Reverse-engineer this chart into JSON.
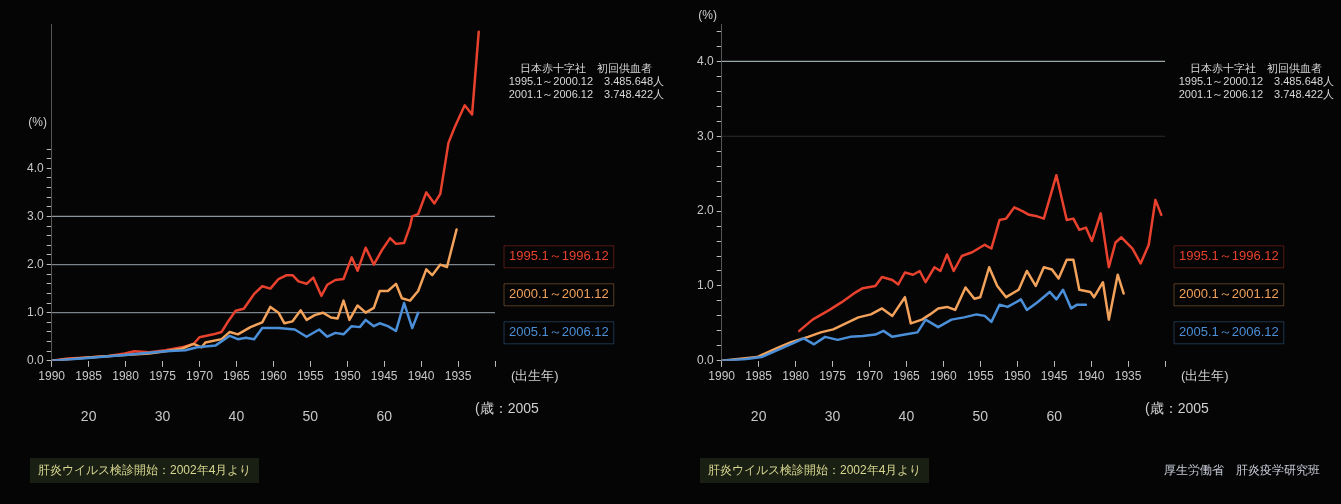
{
  "chart_data": [
    {
      "type": "line",
      "xlabel": "(出生年)",
      "x2label": "(歳：2005",
      "ylabel": "(%)",
      "xlim": [
        1990,
        1930
      ],
      "xticks": [
        1990,
        1985,
        1980,
        1975,
        1970,
        1965,
        1960,
        1955,
        1950,
        1945,
        1940,
        1935,
        {
          "value": 1930,
          "label": null
        }
      ],
      "x2lim": [
        15,
        75
      ],
      "x2ticks": [
        20,
        30,
        40,
        50,
        60
      ],
      "ylim": [
        0,
        7
      ],
      "yticks": [
        {
          "value": 0,
          "label": "0.0"
        },
        {
          "value": 0.2,
          "label": null
        },
        {
          "value": 0.4,
          "label": null
        },
        {
          "value": 0.6,
          "label": null
        },
        {
          "value": 0.8,
          "label": null
        },
        {
          "value": 1,
          "label": "1.0"
        },
        {
          "value": 1.2,
          "label": null
        },
        {
          "value": 1.4,
          "label": null
        },
        {
          "value": 1.6,
          "label": null
        },
        {
          "value": 1.8,
          "label": null
        },
        {
          "value": 2,
          "label": "2.0"
        },
        {
          "value": 2.2,
          "label": null
        },
        {
          "value": 2.4,
          "label": null
        },
        {
          "value": 2.6,
          "label": null
        },
        {
          "value": 2.8,
          "label": null
        },
        {
          "value": 3,
          "label": "3.0"
        },
        {
          "value": 3.2,
          "label": null
        },
        {
          "value": 3.4,
          "label": null
        },
        {
          "value": 3.6,
          "label": null
        },
        {
          "value": 3.8,
          "label": null
        },
        {
          "value": 4,
          "label": "4.0"
        },
        {
          "value": 4.2,
          "label": null
        },
        {
          "value": 4.4,
          "label": null
        }
      ],
      "grid": false,
      "legend": "right",
      "marker": "none",
      "line_style": "solid",
      "ref_lines": [
        {
          "axis": "y",
          "value": 1,
          "color": "#7c848c"
        },
        {
          "axis": "y",
          "value": 2,
          "color": "#7c848c"
        },
        {
          "axis": "y",
          "value": 3,
          "color": "#8c949c"
        }
      ],
      "annotations": [
        "日本赤十字社　初回供血者",
        "1995.1～2000.12　3.485.648人",
        "2001.1～2006.12　3.748.422人",
        "肝炎ウイルス検診開始：2002年4月より"
      ],
      "series": [
        {
          "name": "1995.1～1996.12",
          "color": "#e8412e",
          "x": [
            1990,
            1987.8,
            1985.1,
            1982.3,
            1980.1,
            1978.8,
            1976.8,
            1974.6,
            1972.4,
            1970.8,
            1970,
            1968.1,
            1967,
            1966.2,
            1965.1,
            1964,
            1962.6,
            1961.5,
            1960.4,
            1959.3,
            1958.2,
            1957.4,
            1956.6,
            1955.5,
            1954.6,
            1953.5,
            1952.7,
            1951.6,
            1950.5,
            1949.4,
            1948.6,
            1947.5,
            1946.4,
            1945.3,
            1944.2,
            1943.4,
            1942.3,
            1941.5,
            1941.2,
            1940.4,
            1939.3,
            1938.2,
            1937.4,
            1936.3,
            1935.5,
            1934.1,
            1933.1,
            1932.2
          ],
          "values": [
            0,
            0.05,
            0.07,
            0.1,
            0.15,
            0.2,
            0.18,
            0.22,
            0.28,
            0.35,
            0.49,
            0.55,
            0.6,
            0.8,
            1.04,
            1.08,
            1.39,
            1.55,
            1.5,
            1.7,
            1.78,
            1.78,
            1.65,
            1.6,
            1.73,
            1.35,
            1.58,
            1.68,
            1.7,
            2.15,
            1.87,
            2.35,
            2,
            2.3,
            2.55,
            2.43,
            2.45,
            2.8,
            3,
            3.05,
            3.5,
            3.27,
            3.47,
            4.53,
            4.84,
            5.31,
            5.12,
            6.84
          ]
        },
        {
          "name": "2000.1～2001.12",
          "color": "#f2a25a",
          "x": [
            1990,
            1985.1,
            1980.1,
            1976.8,
            1974.6,
            1972.4,
            1970.8,
            1969.7,
            1969.2,
            1967,
            1965.9,
            1964.8,
            1963.1,
            1961.5,
            1960.4,
            1959.3,
            1958.5,
            1957.4,
            1956.3,
            1955.5,
            1954.4,
            1953.3,
            1952.2,
            1951.3,
            1950.5,
            1949.7,
            1948.6,
            1947.5,
            1946.4,
            1945.6,
            1944.5,
            1943.4,
            1942.6,
            1941.5,
            1940.4,
            1939.3,
            1938.5,
            1937.4,
            1936.5,
            1935.2
          ],
          "values": [
            0,
            0.07,
            0.12,
            0.15,
            0.2,
            0.25,
            0.35,
            0.28,
            0.38,
            0.45,
            0.6,
            0.55,
            0.7,
            0.8,
            1.12,
            1,
            0.78,
            0.82,
            1.05,
            0.85,
            0.95,
            1,
            0.9,
            0.88,
            1.25,
            0.85,
            1.15,
            1,
            1.1,
            1.45,
            1.45,
            1.6,
            1.3,
            1.25,
            1.45,
            1.9,
            1.78,
            2,
            1.95,
            2.73
          ]
        },
        {
          "name": "2005.1～2006.12",
          "color": "#4a8fd8",
          "x": [
            1990,
            1985.1,
            1980.1,
            1974.6,
            1971.9,
            1970.3,
            1967.8,
            1965.9,
            1964.8,
            1963.7,
            1962.6,
            1961.5,
            1959.3,
            1957.1,
            1955.5,
            1953.8,
            1952.7,
            1951.6,
            1950.5,
            1949.4,
            1948.3,
            1947.5,
            1946.4,
            1945.6,
            1944.5,
            1943.4,
            1942.3,
            1941.2,
            1940.4
          ],
          "values": [
            0,
            0.06,
            0.12,
            0.2,
            0.22,
            0.28,
            0.32,
            0.52,
            0.45,
            0.48,
            0.45,
            0.68,
            0.68,
            0.65,
            0.5,
            0.65,
            0.5,
            0.58,
            0.55,
            0.72,
            0.7,
            0.85,
            0.72,
            0.78,
            0.72,
            0.62,
            1.2,
            0.68,
            1
          ]
        }
      ]
    },
    {
      "type": "line",
      "xlabel": "(出生年)",
      "x2label": "(歳：2005",
      "ylabel": "(%)",
      "xlim": [
        1990,
        1930
      ],
      "xticks": [
        1990,
        1985,
        1980,
        1975,
        1970,
        1965,
        1960,
        1955,
        1950,
        1945,
        1940,
        1935,
        {
          "value": 1930,
          "label": null
        }
      ],
      "x2lim": [
        15,
        75
      ],
      "x2ticks": [
        20,
        30,
        40,
        50,
        60
      ],
      "ylim": [
        0,
        4.5
      ],
      "yticks": [
        {
          "value": 0,
          "label": "0.0"
        },
        {
          "value": 0.2,
          "label": null
        },
        {
          "value": 0.4,
          "label": null
        },
        {
          "value": 0.6,
          "label": null
        },
        {
          "value": 0.8,
          "label": null
        },
        {
          "value": 1,
          "label": "1.0"
        },
        {
          "value": 1.2,
          "label": null
        },
        {
          "value": 1.4,
          "label": null
        },
        {
          "value": 1.6,
          "label": null
        },
        {
          "value": 1.8,
          "label": null
        },
        {
          "value": 2,
          "label": "2.0"
        },
        {
          "value": 2.2,
          "label": null
        },
        {
          "value": 2.4,
          "label": null
        },
        {
          "value": 2.6,
          "label": null
        },
        {
          "value": 2.8,
          "label": null
        },
        {
          "value": 3,
          "label": "3.0"
        },
        {
          "value": 3.2,
          "label": null
        },
        {
          "value": 3.4,
          "label": null
        },
        {
          "value": 3.6,
          "label": null
        },
        {
          "value": 3.8,
          "label": null
        },
        {
          "value": 4,
          "label": "4.0"
        },
        {
          "value": 4.2,
          "label": null
        },
        {
          "value": 4.4,
          "label": null
        }
      ],
      "grid": false,
      "legend": "right",
      "marker": "none",
      "line_style": "solid",
      "ref_lines": [
        {
          "axis": "y",
          "value": 3,
          "color": "#2a2e32"
        },
        {
          "axis": "y",
          "value": 4,
          "color": "#9aa6aa"
        }
      ],
      "annotations": [
        "日本赤十字社　初回供血者",
        "1995.1～2000.12　3.485.648人",
        "2001.1～2006.12　3.748.422人",
        "肝炎ウイルス検診開始：2002年4月より",
        "厚生労働省　肝炎疫学研究班"
      ],
      "series": [
        {
          "name": "1995.1～1996.12",
          "color": "#e8412e",
          "x": [
            1979.5,
            1977.7,
            1975.4,
            1973.8,
            1972.1,
            1970.9,
            1969.2,
            1968.3,
            1966.9,
            1966.1,
            1965.2,
            1964.1,
            1963.2,
            1962.4,
            1961.2,
            1960.4,
            1959.5,
            1958.6,
            1957.5,
            1956.1,
            1954.4,
            1953.5,
            1952.4,
            1951.5,
            1950.4,
            1949.3,
            1948.4,
            1947.3,
            1946.4,
            1944.7,
            1943.3,
            1942.4,
            1941.6,
            1940.7,
            1939.9,
            1938.7,
            1937.6,
            1936.7,
            1935.9,
            1934.4,
            1933.3,
            1932.2,
            1931.3,
            1930.5
          ],
          "values": [
            0.4,
            0.55,
            0.68,
            0.78,
            0.9,
            0.97,
            1,
            1.12,
            1.08,
            1.02,
            1.18,
            1.15,
            1.2,
            1.05,
            1.25,
            1.2,
            1.42,
            1.2,
            1.4,
            1.45,
            1.55,
            1.5,
            1.88,
            1.9,
            2.05,
            2,
            1.95,
            1.93,
            1.9,
            2.48,
            1.88,
            1.9,
            1.75,
            1.78,
            1.6,
            1.97,
            1.25,
            1.58,
            1.65,
            1.5,
            1.3,
            1.55,
            2.15,
            1.95
          ]
        },
        {
          "name": "2000.1～2001.12",
          "color": "#f2a25a",
          "x": [
            1990,
            1985.2,
            1982.3,
            1980.6,
            1978.3,
            1976.6,
            1974.9,
            1973.2,
            1971.5,
            1969.8,
            1968.3,
            1966.9,
            1965.2,
            1964.4,
            1962.9,
            1961.8,
            1960.7,
            1959.5,
            1958.4,
            1957,
            1955.8,
            1955,
            1953.8,
            1952.7,
            1951.5,
            1949.8,
            1948.7,
            1947.5,
            1946.4,
            1945.3,
            1944.4,
            1943.3,
            1942.4,
            1941.6,
            1940.1,
            1939.6,
            1938.4,
            1937.6,
            1936.4,
            1935.6
          ],
          "values": [
            0,
            0.05,
            0.18,
            0.25,
            0.32,
            0.38,
            0.42,
            0.5,
            0.58,
            0.62,
            0.7,
            0.6,
            0.85,
            0.5,
            0.55,
            0.62,
            0.7,
            0.72,
            0.68,
            0.98,
            0.83,
            0.85,
            1.25,
            1,
            0.85,
            0.95,
            1.2,
            1,
            1.25,
            1.22,
            1.1,
            1.35,
            1.35,
            0.95,
            0.92,
            0.85,
            1.05,
            0.55,
            1.15,
            0.9
          ]
        },
        {
          "name": "2005.1～2006.12",
          "color": "#4a8fd8",
          "x": [
            1990,
            1986.9,
            1984.6,
            1982.3,
            1980,
            1978.9,
            1977.5,
            1976,
            1974.3,
            1972.6,
            1970.9,
            1969.2,
            1968.1,
            1966.9,
            1965.2,
            1963.5,
            1962.4,
            1960.7,
            1958.9,
            1957.2,
            1955.5,
            1954.4,
            1953.5,
            1952.4,
            1951.3,
            1949.5,
            1948.7,
            1947.3,
            1945.6,
            1944.7,
            1943.8,
            1942.7,
            1941.9,
            1940.7
          ],
          "values": [
            0,
            0.02,
            0.05,
            0.15,
            0.25,
            0.3,
            0.22,
            0.32,
            0.28,
            0.32,
            0.33,
            0.35,
            0.4,
            0.32,
            0.35,
            0.38,
            0.55,
            0.45,
            0.55,
            0.58,
            0.62,
            0.6,
            0.52,
            0.75,
            0.72,
            0.82,
            0.68,
            0.78,
            0.92,
            0.82,
            0.95,
            0.7,
            0.75,
            0.75
          ]
        }
      ]
    }
  ]
}
